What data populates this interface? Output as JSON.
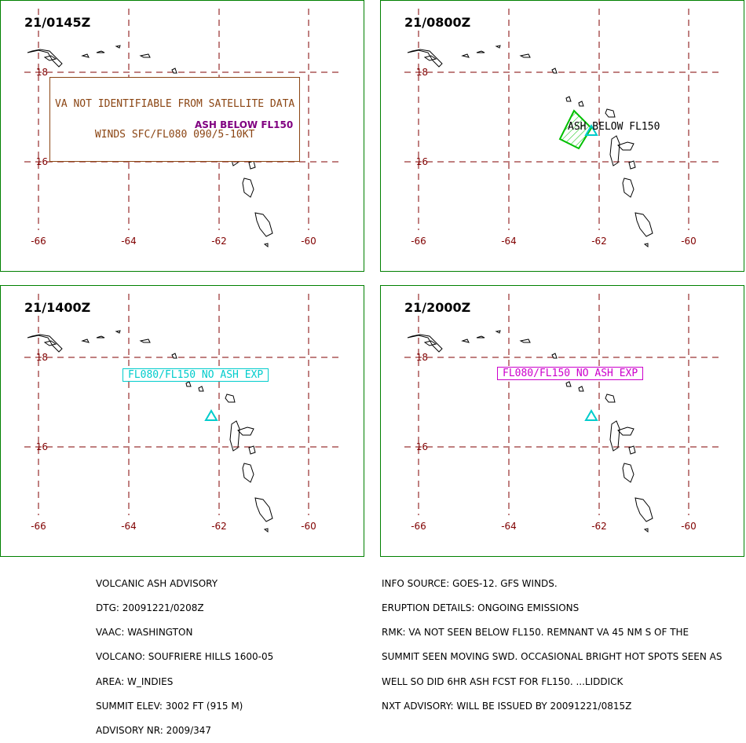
{
  "panels": [
    {
      "time": "21/0145Z"
    },
    {
      "time": "21/0800Z"
    },
    {
      "time": "21/1400Z"
    },
    {
      "time": "21/2000Z"
    }
  ],
  "axis": {
    "lon_labels": [
      "-66",
      "-64",
      "-62",
      "-60"
    ],
    "lat_labels": [
      "18",
      "16"
    ]
  },
  "annotations": {
    "p1_box_line1": "VA NOT IDENTIFIABLE FROM SATELLITE DATA",
    "p1_box_line2": "WINDS SFC/FL080 090/5-10KT",
    "p1_ash": "ASH BELOW FL150",
    "p2_ash": "ASH BELOW FL150",
    "p3_box": "FL080/FL150 NO ASH EXP",
    "p4_box": "FL080/FL150 NO ASH EXP"
  },
  "advisory_left": [
    "VOLCANIC ASH ADVISORY",
    "DTG: 20091221/0208Z",
    "VAAC: WASHINGTON",
    "VOLCANO: SOUFRIERE HILLS 1600-05",
    "AREA: W_INDIES",
    "SUMMIT ELEV: 3002 FT (915 M)",
    "ADVISORY NR: 2009/347"
  ],
  "advisory_right": [
    "INFO SOURCE: GOES-12. GFS WINDS.",
    "ERUPTION DETAILS: ONGOING EMISSIONS",
    "RMK: VA NOT SEEN BELOW FL150. REMNANT VA 45 NM S OF THE",
    "SUMMIT SEEN MOVING SWD. OCCASIONAL BRIGHT HOT SPOTS SEEN AS",
    "WELL SO DID 6HR ASH FCST FOR FL150. ...LIDDICK",
    "NXT ADVISORY: WILL BE ISSUED BY 20091221/0815Z"
  ],
  "colors": {
    "grid": "#800000",
    "border": "#008000",
    "p1_ash": "#8B4513",
    "p1_label": "#800080",
    "p2_ash": "#00C000",
    "volcano": "#00CCCC",
    "p3_box": "#00CCCC",
    "p4_box": "#CC00CC"
  }
}
